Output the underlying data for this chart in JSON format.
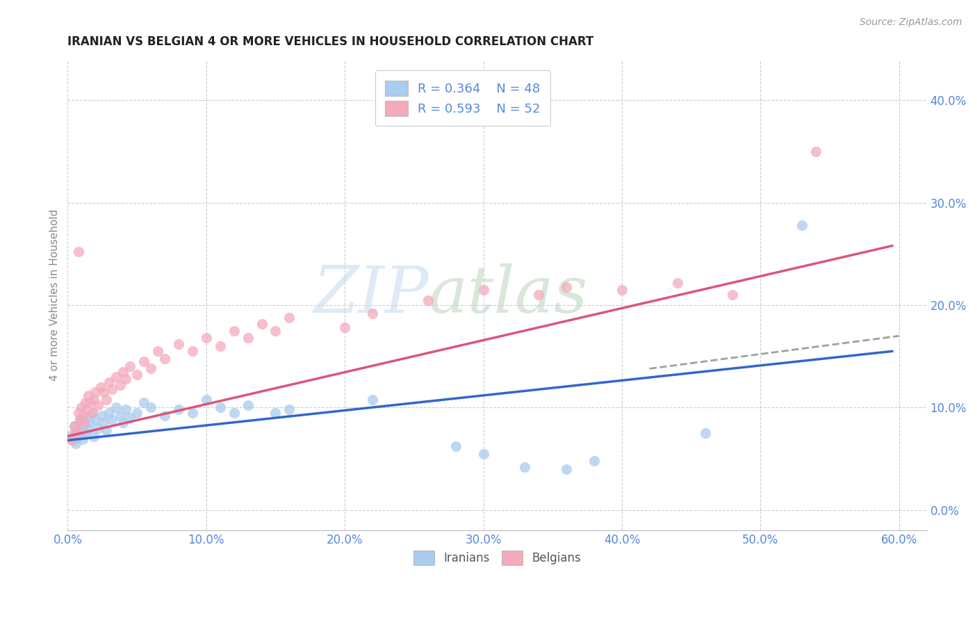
{
  "title": "IRANIAN VS BELGIAN 4 OR MORE VEHICLES IN HOUSEHOLD CORRELATION CHART",
  "source": "Source: ZipAtlas.com",
  "ylabel": "4 or more Vehicles in Household",
  "xlim": [
    0.0,
    0.62
  ],
  "ylim": [
    -0.02,
    0.44
  ],
  "xticks": [
    0.0,
    0.1,
    0.2,
    0.3,
    0.4,
    0.5,
    0.6
  ],
  "yticks": [
    0.0,
    0.1,
    0.2,
    0.3,
    0.4
  ],
  "xticklabels": [
    "0.0%",
    "10.0%",
    "20.0%",
    "30.0%",
    "40.0%",
    "50.0%",
    "60.0%"
  ],
  "yticklabels": [
    "0.0%",
    "10.0%",
    "20.0%",
    "30.0%",
    "40.0%"
  ],
  "background_color": "#ffffff",
  "grid_color": "#cccccc",
  "legend_r_iranian": "R = 0.364",
  "legend_n_iranian": "N = 48",
  "legend_r_belgian": "R = 0.593",
  "legend_n_belgian": "N = 52",
  "iranian_color": "#aaccee",
  "belgian_color": "#f4aabb",
  "iranian_line_color": "#3366cc",
  "belgian_line_color": "#dd5577",
  "tick_color": "#5588dd",
  "ylabel_color": "#888888",
  "iranian_scatter": [
    [
      0.003,
      0.073
    ],
    [
      0.004,
      0.068
    ],
    [
      0.005,
      0.082
    ],
    [
      0.006,
      0.065
    ],
    [
      0.007,
      0.078
    ],
    [
      0.008,
      0.071
    ],
    [
      0.009,
      0.088
    ],
    [
      0.01,
      0.076
    ],
    [
      0.011,
      0.069
    ],
    [
      0.012,
      0.083
    ],
    [
      0.013,
      0.075
    ],
    [
      0.014,
      0.091
    ],
    [
      0.015,
      0.079
    ],
    [
      0.016,
      0.086
    ],
    [
      0.018,
      0.095
    ],
    [
      0.019,
      0.072
    ],
    [
      0.02,
      0.088
    ],
    [
      0.022,
      0.08
    ],
    [
      0.025,
      0.092
    ],
    [
      0.026,
      0.085
    ],
    [
      0.028,
      0.078
    ],
    [
      0.03,
      0.095
    ],
    [
      0.032,
      0.088
    ],
    [
      0.035,
      0.1
    ],
    [
      0.038,
      0.092
    ],
    [
      0.04,
      0.085
    ],
    [
      0.042,
      0.098
    ],
    [
      0.045,
      0.09
    ],
    [
      0.05,
      0.095
    ],
    [
      0.055,
      0.105
    ],
    [
      0.06,
      0.1
    ],
    [
      0.07,
      0.092
    ],
    [
      0.08,
      0.098
    ],
    [
      0.09,
      0.095
    ],
    [
      0.1,
      0.108
    ],
    [
      0.11,
      0.1
    ],
    [
      0.12,
      0.095
    ],
    [
      0.13,
      0.102
    ],
    [
      0.15,
      0.095
    ],
    [
      0.16,
      0.098
    ],
    [
      0.22,
      0.108
    ],
    [
      0.28,
      0.062
    ],
    [
      0.3,
      0.055
    ],
    [
      0.33,
      0.042
    ],
    [
      0.36,
      0.04
    ],
    [
      0.38,
      0.048
    ],
    [
      0.46,
      0.075
    ],
    [
      0.53,
      0.278
    ]
  ],
  "belgian_scatter": [
    [
      0.003,
      0.068
    ],
    [
      0.005,
      0.082
    ],
    [
      0.006,
      0.075
    ],
    [
      0.007,
      0.078
    ],
    [
      0.008,
      0.095
    ],
    [
      0.009,
      0.088
    ],
    [
      0.01,
      0.1
    ],
    [
      0.011,
      0.092
    ],
    [
      0.012,
      0.085
    ],
    [
      0.013,
      0.105
    ],
    [
      0.014,
      0.098
    ],
    [
      0.015,
      0.112
    ],
    [
      0.016,
      0.105
    ],
    [
      0.018,
      0.095
    ],
    [
      0.019,
      0.108
    ],
    [
      0.02,
      0.115
    ],
    [
      0.022,
      0.102
    ],
    [
      0.024,
      0.12
    ],
    [
      0.026,
      0.115
    ],
    [
      0.028,
      0.108
    ],
    [
      0.03,
      0.125
    ],
    [
      0.032,
      0.118
    ],
    [
      0.035,
      0.13
    ],
    [
      0.038,
      0.122
    ],
    [
      0.04,
      0.135
    ],
    [
      0.042,
      0.128
    ],
    [
      0.045,
      0.14
    ],
    [
      0.05,
      0.132
    ],
    [
      0.055,
      0.145
    ],
    [
      0.06,
      0.138
    ],
    [
      0.065,
      0.155
    ],
    [
      0.07,
      0.148
    ],
    [
      0.08,
      0.162
    ],
    [
      0.09,
      0.155
    ],
    [
      0.1,
      0.168
    ],
    [
      0.11,
      0.16
    ],
    [
      0.12,
      0.175
    ],
    [
      0.13,
      0.168
    ],
    [
      0.14,
      0.182
    ],
    [
      0.15,
      0.175
    ],
    [
      0.16,
      0.188
    ],
    [
      0.2,
      0.178
    ],
    [
      0.22,
      0.192
    ],
    [
      0.26,
      0.205
    ],
    [
      0.3,
      0.215
    ],
    [
      0.34,
      0.21
    ],
    [
      0.36,
      0.218
    ],
    [
      0.4,
      0.215
    ],
    [
      0.44,
      0.222
    ],
    [
      0.48,
      0.21
    ],
    [
      0.54,
      0.35
    ],
    [
      0.008,
      0.252
    ]
  ],
  "iranian_line": {
    "x0": 0.0,
    "x1": 0.595,
    "y0": 0.068,
    "y1": 0.155
  },
  "belgian_line": {
    "x0": 0.0,
    "x1": 0.595,
    "y0": 0.072,
    "y1": 0.258
  },
  "iranian_dashed_line": {
    "x0": 0.42,
    "x1": 0.6,
    "y0": 0.138,
    "y1": 0.17
  }
}
